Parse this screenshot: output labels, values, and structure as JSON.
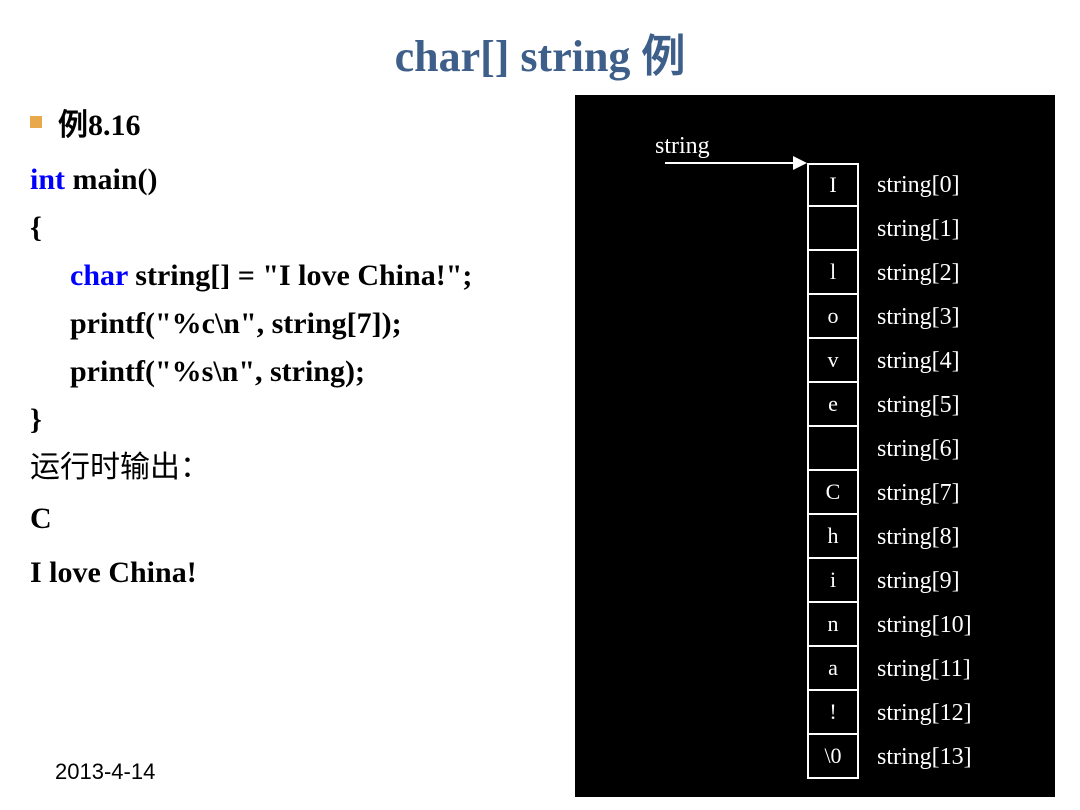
{
  "title": "char[] string 例",
  "example_label": "例8.16",
  "code": {
    "line1_kw": "int",
    "line1_rest": " main()",
    "line2": "{",
    "line3_kw": "char",
    "line3_rest": " string[] = \"I love China!\";",
    "line4": "printf(\"%c\\n\", string[7]);",
    "line5": "printf(\"%s\\n\", string);",
    "line6": "}"
  },
  "output_label": "运行时输出：",
  "output1": "C",
  "output2": "I love China!",
  "footer_date": "2013-4-14",
  "diagram": {
    "header": "string",
    "cells": [
      {
        "char": "I",
        "label": "string[0]"
      },
      {
        "char": "",
        "label": "string[1]"
      },
      {
        "char": "l",
        "label": "string[2]"
      },
      {
        "char": "o",
        "label": "string[3]"
      },
      {
        "char": "v",
        "label": "string[4]"
      },
      {
        "char": "e",
        "label": "string[5]"
      },
      {
        "char": "",
        "label": "string[6]"
      },
      {
        "char": "C",
        "label": "string[7]"
      },
      {
        "char": "h",
        "label": "string[8]"
      },
      {
        "char": "i",
        "label": "string[9]"
      },
      {
        "char": "n",
        "label": "string[10]"
      },
      {
        "char": "a",
        "label": "string[11]"
      },
      {
        "char": "!",
        "label": "string[12]"
      },
      {
        "char": "\\0",
        "label": "string[13]"
      }
    ]
  }
}
